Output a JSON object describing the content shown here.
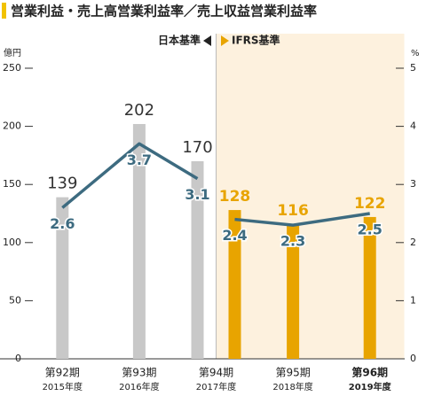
{
  "chart_data": {
    "type": "bar",
    "title": "営業利益・売上高営業利益率／売上収益営業利益率",
    "y_unit": "億円",
    "y2_unit": "%",
    "categories": [
      "第92期",
      "第93期",
      "第94期",
      "第95期",
      "第96期"
    ],
    "category_sublabels": [
      "2015年度",
      "2016年度",
      "2017年度",
      "2018年度",
      "2019年度"
    ],
    "ylim": [
      0,
      250
    ],
    "yticks": [
      0,
      50,
      100,
      150,
      200,
      250
    ],
    "y2lim": [
      0,
      5
    ],
    "y2ticks": [
      0,
      1,
      2,
      3,
      4,
      5
    ],
    "series": [
      {
        "name": "日本基準",
        "color": "#c8c8c8",
        "values": [
          139,
          202,
          170,
          null,
          null
        ]
      },
      {
        "name": "IFRS基準",
        "color": "#e8a400",
        "values": [
          null,
          null,
          128,
          116,
          122
        ]
      },
      {
        "name": "日本基準",
        "type": "line",
        "axis": "y2",
        "color": "#3d6b80",
        "values": [
          2.6,
          3.7,
          3.1,
          null,
          null
        ]
      },
      {
        "name": "IFRS基準",
        "type": "line",
        "axis": "y2",
        "color": "#3d6b80",
        "values": [
          null,
          null,
          2.4,
          2.3,
          2.5
        ]
      }
    ]
  }
}
